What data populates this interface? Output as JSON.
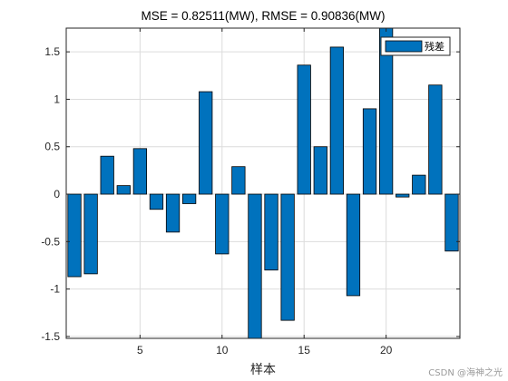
{
  "chart_data": {
    "type": "bar",
    "title": "MSE = 0.82511(MW), RMSE = 0.90836(MW)",
    "xlabel": "样本",
    "ylabel": "",
    "xlim": [
      0.5,
      24.5
    ],
    "ylim": [
      -1.52,
      1.75
    ],
    "x_ticks": [
      5,
      10,
      15,
      20
    ],
    "y_ticks": [
      -1.5,
      -1,
      -0.5,
      0,
      0.5,
      1,
      1.5
    ],
    "grid": true,
    "legend_position": "top-right",
    "bar_color": "#0072BD",
    "edge_color": "#000000",
    "series": [
      {
        "name": "残差",
        "x": [
          1,
          2,
          3,
          4,
          5,
          6,
          7,
          8,
          9,
          10,
          11,
          12,
          13,
          14,
          15,
          16,
          17,
          18,
          19,
          20,
          21,
          22,
          23,
          24
        ],
        "values": [
          -0.87,
          -0.84,
          0.4,
          0.09,
          0.48,
          -0.16,
          -0.4,
          -0.1,
          1.08,
          -0.63,
          0.29,
          -1.52,
          -0.8,
          -1.33,
          1.36,
          0.5,
          1.55,
          -1.07,
          0.9,
          1.75,
          -0.03,
          0.2,
          1.15,
          -0.6
        ]
      }
    ]
  },
  "watermark": "CSDN @海神之光"
}
